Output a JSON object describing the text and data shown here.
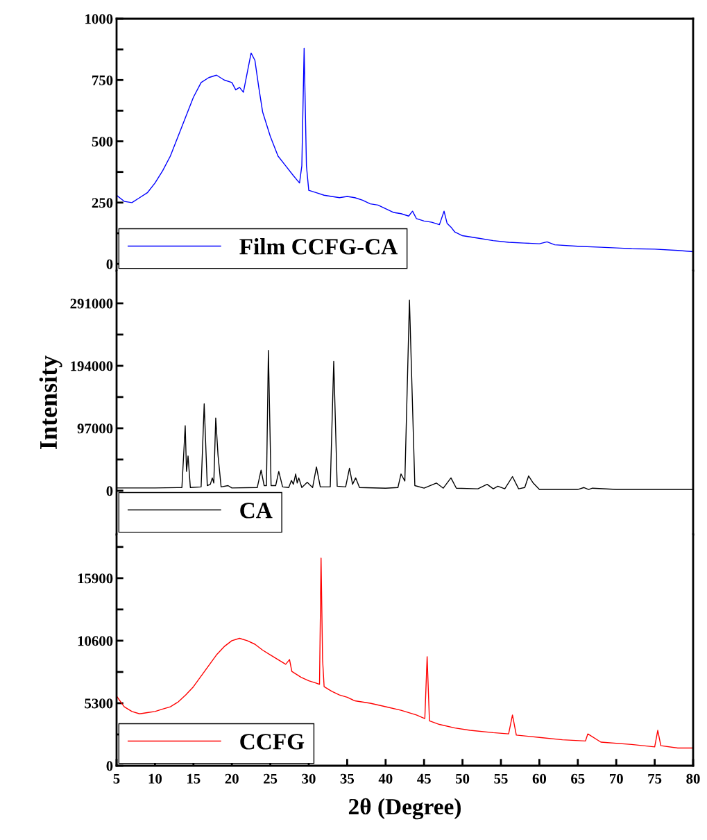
{
  "chart_data": [
    {
      "type": "line",
      "xlim": [
        5,
        80
      ],
      "ylim": [
        -28,
        1000
      ],
      "yticks": [
        0,
        {
          "value": 125,
          "label": null
        },
        250,
        {
          "value": 375,
          "label": null
        },
        500,
        {
          "value": 625,
          "label": null
        },
        750,
        {
          "value": 875,
          "label": null
        },
        1000
      ],
      "tick_labels": "y",
      "legend": "bottom left",
      "grid": false,
      "series": [
        {
          "name": "Film CCFG-CA",
          "color": "#0000ff",
          "x": [
            5,
            6,
            7,
            8,
            9,
            10,
            11,
            12,
            13,
            14,
            15,
            16,
            17,
            18,
            19,
            20,
            20.5,
            21,
            21.5,
            22,
            22.5,
            23,
            23.5,
            24,
            25,
            26,
            27,
            28,
            28.8,
            29.1,
            29.4,
            29.7,
            30,
            31,
            32,
            33,
            34,
            35,
            36,
            37,
            38,
            39,
            40,
            41,
            42,
            43,
            43.5,
            44,
            45,
            46,
            47,
            47.6,
            48,
            48.5,
            49,
            50,
            52,
            54,
            56,
            58,
            60,
            61,
            62,
            65,
            68,
            70,
            72,
            75,
            78,
            80
          ],
          "values": [
            280,
            255,
            250,
            270,
            290,
            330,
            380,
            440,
            520,
            600,
            680,
            740,
            760,
            770,
            750,
            740,
            710,
            720,
            700,
            780,
            860,
            830,
            720,
            620,
            520,
            440,
            400,
            360,
            330,
            400,
            880,
            400,
            300,
            290,
            280,
            275,
            270,
            275,
            270,
            260,
            245,
            240,
            225,
            210,
            205,
            195,
            215,
            185,
            175,
            170,
            160,
            215,
            165,
            150,
            130,
            115,
            105,
            95,
            88,
            85,
            82,
            90,
            78,
            72,
            68,
            65,
            62,
            60,
            55,
            50
          ]
        }
      ]
    },
    {
      "type": "line",
      "xlim": [
        5,
        80
      ],
      "ylim": [
        -68000,
        341600
      ],
      "yticks": [
        0,
        {
          "value": 48500,
          "label": null
        },
        97000,
        {
          "value": 145500,
          "label": null
        },
        194000,
        {
          "value": 242500,
          "label": null
        },
        291000
      ],
      "ylabel": "Intensity",
      "tick_labels": "y",
      "legend": "bottom left",
      "grid": false,
      "series": [
        {
          "name": "CA",
          "color": "#000000",
          "x": [
            5,
            10,
            13.5,
            13.93,
            14.1,
            14.3,
            14.6,
            16.0,
            16.4,
            16.8,
            17.2,
            17.45,
            17.65,
            17.9,
            18.2,
            18.6,
            19.5,
            20,
            23.3,
            23.8,
            24.2,
            24.5,
            24.75,
            25.1,
            25.7,
            26.1,
            26.6,
            27.4,
            27.75,
            28.0,
            28.3,
            28.5,
            28.7,
            29.1,
            29.8,
            30.5,
            31.0,
            31.5,
            32.8,
            33.25,
            33.7,
            34.8,
            35.3,
            35.7,
            36.1,
            36.6,
            40,
            41.6,
            42.0,
            42.5,
            43.1,
            43.8,
            45,
            46.6,
            47.5,
            48.5,
            49.2,
            52,
            53.2,
            54,
            54.6,
            55.5,
            56.5,
            57.3,
            58.1,
            58.6,
            59.2,
            60,
            65,
            65.8,
            66.4,
            66.9,
            70,
            80
          ],
          "values": [
            4300,
            4300,
            5000,
            101000,
            30000,
            54000,
            5000,
            6000,
            135000,
            8000,
            10000,
            20000,
            12000,
            113000,
            55000,
            6000,
            8000,
            4300,
            5000,
            32000,
            8000,
            8000,
            218000,
            8000,
            8000,
            30000,
            6000,
            5000,
            16000,
            10000,
            26000,
            12000,
            20000,
            5000,
            13000,
            5000,
            37000,
            6000,
            6000,
            201000,
            7000,
            6000,
            35000,
            10000,
            20000,
            5000,
            4000,
            5000,
            26000,
            15000,
            296000,
            8000,
            4000,
            12000,
            4000,
            20000,
            4000,
            3000,
            10000,
            3000,
            7000,
            3000,
            22000,
            3000,
            5000,
            23000,
            12000,
            2000,
            2000,
            5000,
            2000,
            4000,
            2000,
            2000
          ]
        }
      ]
    },
    {
      "type": "line",
      "xlim": [
        5,
        80
      ],
      "ylim": [
        0,
        19600
      ],
      "xticks": [
        5,
        10,
        15,
        20,
        25,
        30,
        35,
        40,
        45,
        50,
        55,
        60,
        65,
        70,
        75,
        80
      ],
      "yticks": [
        0,
        {
          "value": 2650,
          "label": null
        },
        5300,
        {
          "value": 7950,
          "label": null
        },
        10600,
        {
          "value": 13250,
          "label": null
        },
        15900,
        {
          "value": 18550,
          "label": null
        }
      ],
      "xlabel": "2θ (Degree)",
      "legend": "bottom left",
      "grid": false,
      "series": [
        {
          "name": "CCFG",
          "color": "#ff0000",
          "x": [
            5,
            6,
            7,
            8,
            9,
            10,
            11,
            12,
            13,
            14,
            15,
            16,
            17,
            18,
            19,
            20,
            21,
            22,
            23,
            24,
            25,
            26,
            27,
            27.5,
            27.8,
            29,
            30,
            31,
            31.4,
            31.6,
            31.8,
            32,
            33,
            34,
            35,
            36,
            38,
            40,
            42,
            44,
            45.1,
            45.4,
            45.7,
            47,
            49,
            51,
            54,
            56,
            56.5,
            57,
            60,
            63,
            66,
            66.3,
            68,
            72,
            75,
            75.4,
            75.8,
            78,
            80
          ],
          "values": [
            5900,
            5000,
            4600,
            4400,
            4500,
            4600,
            4800,
            5000,
            5400,
            6000,
            6700,
            7600,
            8500,
            9400,
            10100,
            10600,
            10800,
            10600,
            10300,
            9800,
            9400,
            9000,
            8600,
            9000,
            8000,
            7500,
            7200,
            7000,
            6900,
            17600,
            9000,
            6700,
            6300,
            6000,
            5800,
            5500,
            5300,
            5000,
            4700,
            4300,
            4000,
            9250,
            3800,
            3500,
            3200,
            3000,
            2800,
            2700,
            4300,
            2600,
            2400,
            2200,
            2100,
            2700,
            2000,
            1800,
            1600,
            3000,
            1700,
            1500,
            1500
          ]
        }
      ]
    }
  ]
}
